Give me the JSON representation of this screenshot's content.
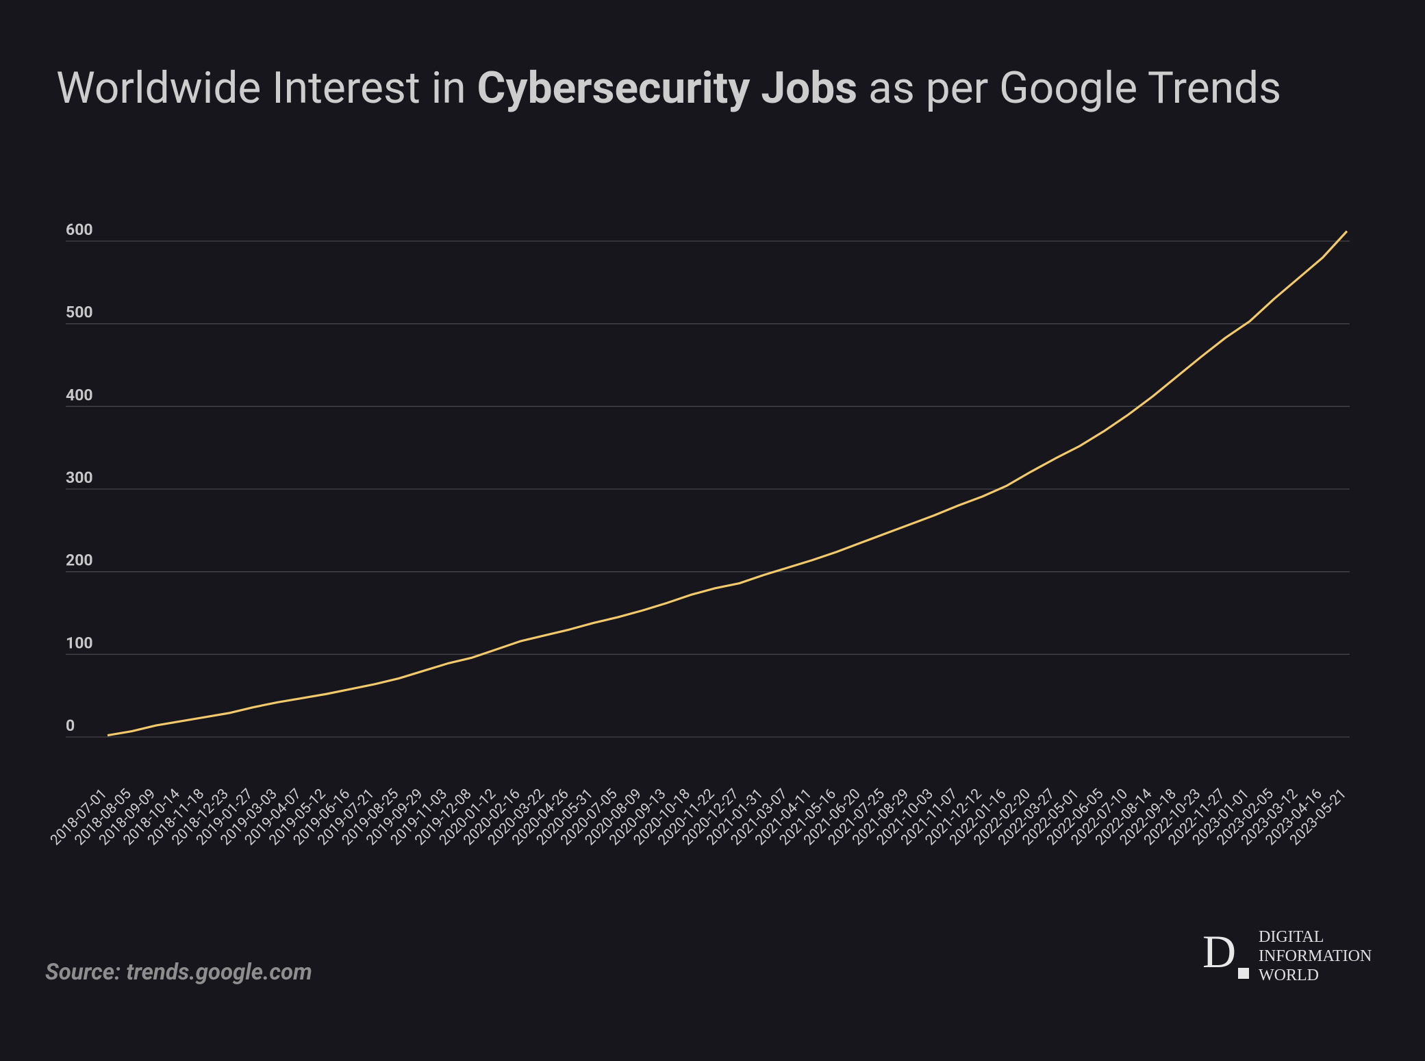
{
  "chart_data": {
    "type": "line",
    "title_parts": [
      "Worldwide Interest in ",
      "Cybersecurity Jobs",
      " as per Google Trends"
    ],
    "categories": [
      "2018-07-01",
      "2018-08-05",
      "2018-09-09",
      "2018-10-14",
      "2018-11-18",
      "2018-12-23",
      "2019-01-27",
      "2019-03-03",
      "2019-04-07",
      "2019-05-12",
      "2019-06-16",
      "2019-07-21",
      "2019-08-25",
      "2019-09-29",
      "2019-11-03",
      "2019-12-08",
      "2020-01-12",
      "2020-02-16",
      "2020-03-22",
      "2020-04-26",
      "2020-05-31",
      "2020-07-05",
      "2020-08-09",
      "2020-09-13",
      "2020-10-18",
      "2020-11-22",
      "2020-12-27",
      "2021-01-31",
      "2021-03-07",
      "2021-04-11",
      "2021-05-16",
      "2021-06-20",
      "2021-07-25",
      "2021-08-29",
      "2021-10-03",
      "2021-11-07",
      "2021-12-12",
      "2022-01-16",
      "2022-02-20",
      "2022-03-27",
      "2022-05-01",
      "2022-06-05",
      "2022-07-10",
      "2022-08-14",
      "2022-09-18",
      "2022-10-23",
      "2022-11-27",
      "2023-01-01",
      "2023-02-05",
      "2023-03-12",
      "2023-04-16",
      "2023-05-21"
    ],
    "values": [
      2,
      7,
      14,
      19,
      24,
      29,
      36,
      42,
      47,
      52,
      58,
      64,
      71,
      80,
      89,
      96,
      106,
      116,
      123,
      130,
      138,
      145,
      153,
      162,
      172,
      180,
      186,
      196,
      205,
      214,
      224,
      235,
      246,
      257,
      268,
      280,
      291,
      304,
      321,
      337,
      352,
      370,
      390,
      412,
      436,
      460,
      483,
      503,
      530,
      555,
      580,
      612
    ],
    "color": "#f2c96b",
    "ylim": [
      0,
      600
    ],
    "yticks": [
      0,
      100,
      200,
      300,
      400,
      500,
      600
    ],
    "grid": true,
    "source": "Source: trends.google.com",
    "logo": {
      "letter": "D",
      "lines": [
        "DIGITAL",
        "INFORMATION",
        "WORLD"
      ]
    }
  }
}
